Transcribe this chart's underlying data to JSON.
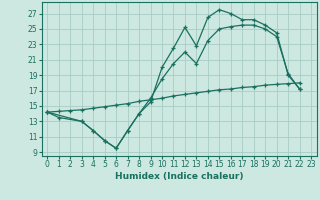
{
  "xlabel": "Humidex (Indice chaleur)",
  "bg_color": "#cce8e0",
  "line_color": "#1a7060",
  "grid_color": "#a8ccc4",
  "xlim": [
    -0.5,
    23.5
  ],
  "ylim": [
    8.5,
    28.5
  ],
  "xticks": [
    0,
    1,
    2,
    3,
    4,
    5,
    6,
    7,
    8,
    9,
    10,
    11,
    12,
    13,
    14,
    15,
    16,
    17,
    18,
    19,
    20,
    21,
    22,
    23
  ],
  "yticks": [
    9,
    11,
    13,
    15,
    17,
    19,
    21,
    23,
    25,
    27
  ],
  "line1_x": [
    0,
    1,
    3,
    4,
    5,
    6,
    7,
    8,
    9,
    10,
    11,
    12,
    13,
    14,
    15,
    16,
    17,
    18,
    19,
    20,
    21,
    22
  ],
  "line1_y": [
    14.2,
    13.5,
    13.0,
    11.8,
    10.5,
    9.5,
    11.8,
    14.0,
    15.5,
    20.0,
    22.5,
    25.2,
    22.8,
    26.5,
    27.5,
    27.0,
    26.2,
    26.2,
    25.5,
    24.5,
    19.0,
    17.2
  ],
  "line2_x": [
    0,
    1,
    2,
    3,
    4,
    5,
    6,
    7,
    8,
    9,
    10,
    11,
    12,
    13,
    14,
    15,
    16,
    17,
    18,
    19,
    20,
    21,
    22
  ],
  "line2_y": [
    14.2,
    14.3,
    14.4,
    14.5,
    14.7,
    14.9,
    15.1,
    15.3,
    15.6,
    15.8,
    16.0,
    16.3,
    16.5,
    16.7,
    16.9,
    17.1,
    17.2,
    17.4,
    17.5,
    17.7,
    17.8,
    17.9,
    18.0
  ],
  "line3_x": [
    0,
    3,
    4,
    5,
    6,
    7,
    8,
    9,
    10,
    11,
    12,
    13,
    14,
    15,
    16,
    17,
    18,
    19,
    20,
    21,
    22
  ],
  "line3_y": [
    14.2,
    13.0,
    11.8,
    10.5,
    9.5,
    11.8,
    14.0,
    16.0,
    18.5,
    20.5,
    22.0,
    20.5,
    23.5,
    25.0,
    25.3,
    25.5,
    25.5,
    25.0,
    24.0,
    19.2,
    17.2
  ]
}
